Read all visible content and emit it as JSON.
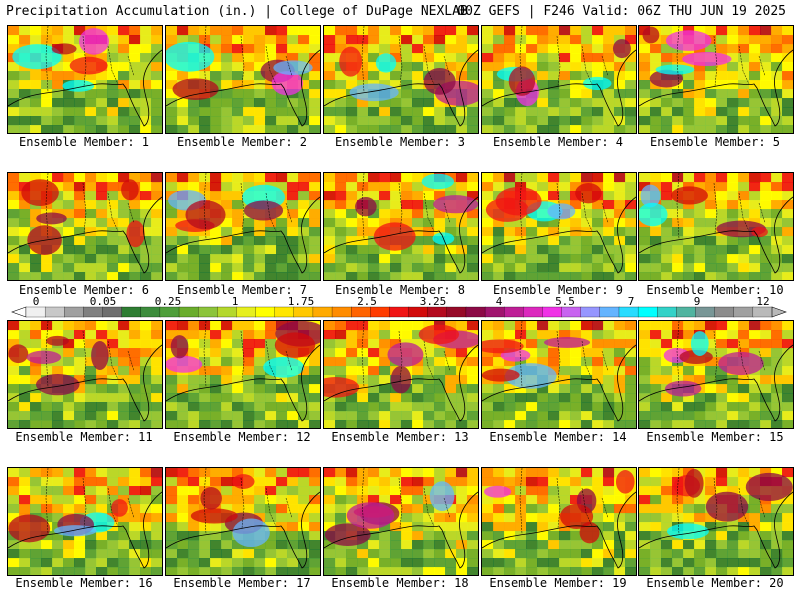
{
  "header": {
    "left": "Precipitation Accumulation (in.) | College of DuPage NEXLAB",
    "right": "00Z GEFS | F246 Valid: 06Z THU JUN 19 2025"
  },
  "colorbar": {
    "labels": [
      "0",
      "0.05",
      "0.25",
      "1",
      "1.75",
      "2.5",
      "3.25",
      "4",
      "5.5",
      "7",
      "9",
      "12"
    ],
    "colors": [
      "#f0f0f0",
      "#c8c8c8",
      "#a0a0a0",
      "#808080",
      "#6e6e6e",
      "#2e7d32",
      "#3c8c3c",
      "#4f9e3a",
      "#6aad2c",
      "#8cc43a",
      "#b4d82c",
      "#e6ef1e",
      "#ffff00",
      "#ffe600",
      "#ffc800",
      "#ffaa00",
      "#ff8c00",
      "#ff6400",
      "#ff3c00",
      "#f01414",
      "#d20a0a",
      "#b40a1e",
      "#960a28",
      "#8c0a46",
      "#a0146e",
      "#be1e96",
      "#dc28be",
      "#f032e6",
      "#c864f0",
      "#9696ff",
      "#64b4ff",
      "#28dcff",
      "#00ffff",
      "#32d2c8",
      "#50b4a0",
      "#789696",
      "#8c8c8c",
      "#a0a0a0",
      "#b9b9b9"
    ]
  },
  "panels": [
    {
      "label": "Ensemble Member: 1"
    },
    {
      "label": "Ensemble Member: 2"
    },
    {
      "label": "Ensemble Member: 3"
    },
    {
      "label": "Ensemble Member: 4"
    },
    {
      "label": "Ensemble Member: 5"
    },
    {
      "label": "Ensemble Member: 6"
    },
    {
      "label": "Ensemble Member: 7"
    },
    {
      "label": "Ensemble Member: 8"
    },
    {
      "label": "Ensemble Member: 9"
    },
    {
      "label": "Ensemble Member: 10"
    },
    {
      "label": "Ensemble Member: 11"
    },
    {
      "label": "Ensemble Member: 12"
    },
    {
      "label": "Ensemble Member: 13"
    },
    {
      "label": "Ensemble Member: 14"
    },
    {
      "label": "Ensemble Member: 15"
    },
    {
      "label": "Ensemble Member: 16"
    },
    {
      "label": "Ensemble Member: 17"
    },
    {
      "label": "Ensemble Member: 18"
    },
    {
      "label": "Ensemble Member: 19"
    },
    {
      "label": "Ensemble Member: 20"
    }
  ]
}
